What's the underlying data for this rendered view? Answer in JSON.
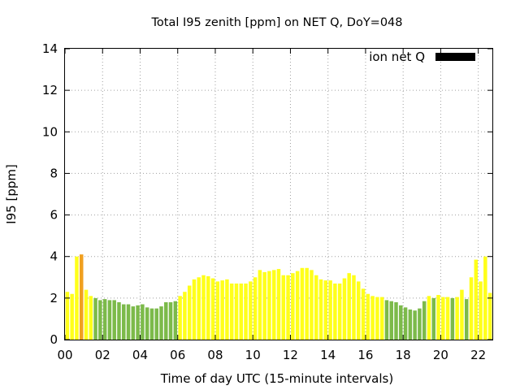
{
  "chart_data": {
    "type": "bar",
    "title": "Total I95 zenith [ppm] on NET Q, DoY=048",
    "xlabel": "Time of day UTC (15-minute intervals)",
    "ylabel": "I95 [ppm]",
    "xlim": [
      0,
      22.75
    ],
    "ylim": [
      0,
      14
    ],
    "x_ticks": [
      "00",
      "02",
      "04",
      "06",
      "08",
      "10",
      "12",
      "14",
      "16",
      "18",
      "20",
      "22"
    ],
    "x_tick_values": [
      0,
      2,
      4,
      6,
      8,
      10,
      12,
      14,
      16,
      18,
      20,
      22
    ],
    "y_ticks": [
      "0",
      "2",
      "4",
      "6",
      "8",
      "10",
      "12",
      "14"
    ],
    "y_tick_values": [
      0,
      2,
      4,
      6,
      8,
      10,
      12,
      14
    ],
    "grid": true,
    "legend": {
      "label": "ion net Q",
      "position": "top-right",
      "color": "#000000"
    },
    "interval_hours": 0.25,
    "colors": {
      "G": "#7cba4a",
      "Y": "#ffff1a",
      "O": "#f0a020"
    },
    "values": [
      2.3,
      2.2,
      4.0,
      4.1,
      2.4,
      2.1,
      2.0,
      1.9,
      1.95,
      1.9,
      1.9,
      1.8,
      1.7,
      1.7,
      1.6,
      1.65,
      1.7,
      1.55,
      1.5,
      1.5,
      1.6,
      1.8,
      1.8,
      1.85,
      2.1,
      2.3,
      2.6,
      2.9,
      3.0,
      3.1,
      3.05,
      2.95,
      2.8,
      2.85,
      2.9,
      2.7,
      2.7,
      2.7,
      2.7,
      2.8,
      3.0,
      3.35,
      3.25,
      3.3,
      3.35,
      3.4,
      3.1,
      3.1,
      3.2,
      3.3,
      3.45,
      3.45,
      3.35,
      3.1,
      2.9,
      2.85,
      2.85,
      2.7,
      2.7,
      2.95,
      3.2,
      3.1,
      2.8,
      2.45,
      2.2,
      2.1,
      2.05,
      2.05,
      1.9,
      1.85,
      1.8,
      1.65,
      1.55,
      1.45,
      1.4,
      1.5,
      1.85,
      2.1,
      2.0,
      2.15,
      2.05,
      2.05,
      2.0,
      2.05,
      2.4,
      1.95,
      3.0,
      3.85,
      2.8,
      4.0,
      2.25
    ],
    "categories": [
      "Y",
      "Y",
      "Y",
      "O",
      "Y",
      "Y",
      "G",
      "G",
      "G",
      "G",
      "G",
      "G",
      "G",
      "G",
      "G",
      "G",
      "G",
      "G",
      "G",
      "G",
      "G",
      "G",
      "G",
      "G",
      "Y",
      "Y",
      "Y",
      "Y",
      "Y",
      "Y",
      "Y",
      "Y",
      "Y",
      "Y",
      "Y",
      "Y",
      "Y",
      "Y",
      "Y",
      "Y",
      "Y",
      "Y",
      "Y",
      "Y",
      "Y",
      "Y",
      "Y",
      "Y",
      "Y",
      "Y",
      "Y",
      "Y",
      "Y",
      "Y",
      "Y",
      "Y",
      "Y",
      "Y",
      "Y",
      "Y",
      "Y",
      "Y",
      "Y",
      "Y",
      "Y",
      "Y",
      "Y",
      "Y",
      "G",
      "G",
      "G",
      "G",
      "G",
      "G",
      "G",
      "G",
      "G",
      "Y",
      "G",
      "Y",
      "Y",
      "Y",
      "G",
      "Y",
      "Y",
      "G",
      "Y",
      "Y",
      "Y",
      "Y",
      "Y"
    ]
  }
}
